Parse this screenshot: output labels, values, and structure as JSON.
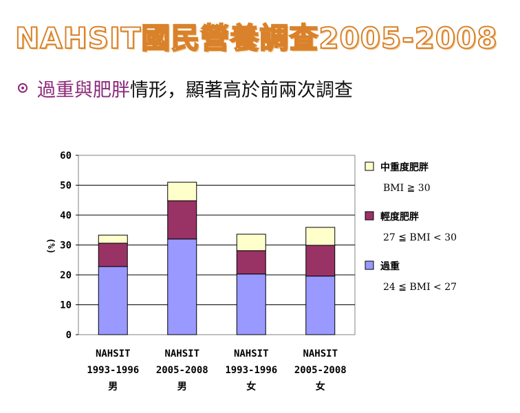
{
  "slide": {
    "title": "NAHSIT國民營養調查2005-2008",
    "bullet": {
      "highlight": "過重與肥胖",
      "rest": "情形，顯著高於前兩次調查"
    }
  },
  "chart_data": {
    "type": "bar",
    "stacked": true,
    "categories": [
      [
        "NAHSIT",
        "1993-1996",
        "男"
      ],
      [
        "NAHSIT",
        "2005-2008",
        "男"
      ],
      [
        "NAHSIT",
        "1993-1996",
        "女"
      ],
      [
        "NAHSIT",
        "2005-2008",
        "女"
      ]
    ],
    "series": [
      {
        "name": "過重",
        "criterion": "24 ≦ BMI < 27",
        "color": "#9999ff",
        "values": [
          22.8,
          32.0,
          20.3,
          19.6
        ]
      },
      {
        "name": "輕度肥胖",
        "criterion": "27 ≦ BMI < 30",
        "color": "#993366",
        "values": [
          7.8,
          12.8,
          7.8,
          10.3
        ]
      },
      {
        "name": "中重度肥胖",
        "criterion": "BMI ≧ 30",
        "color": "#ffffcc",
        "values": [
          2.7,
          6.2,
          5.5,
          6.0
        ]
      }
    ],
    "ylabel": "(%)",
    "ylim": [
      0,
      60
    ],
    "yticks": [
      0,
      10,
      20,
      30,
      40,
      50,
      60
    ],
    "grid": true,
    "legend": "right"
  }
}
